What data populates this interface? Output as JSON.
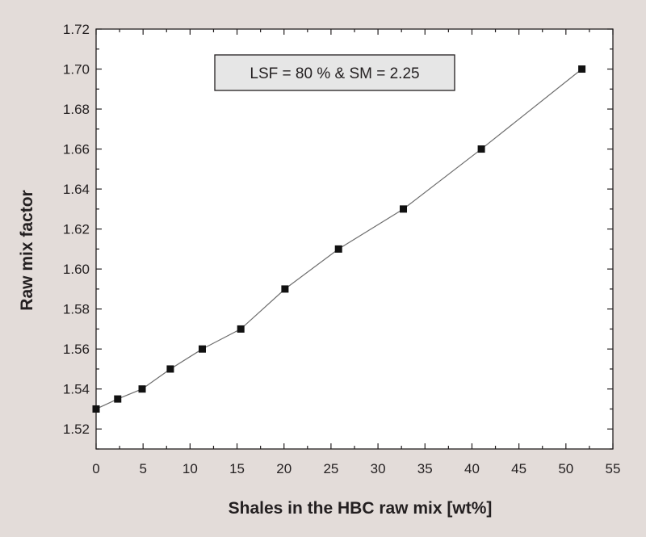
{
  "chart_data": {
    "type": "line",
    "xlabel": "Shales in the HBC raw mix [wt%]",
    "ylabel": "Raw mix factor",
    "xlim": [
      0,
      55
    ],
    "ylim": [
      1.51,
      1.72
    ],
    "x_ticks": [
      "0",
      "5",
      "10",
      "15",
      "20",
      "25",
      "30",
      "35",
      "40",
      "45",
      "50",
      "55"
    ],
    "y_ticks": [
      "1.52",
      "1.54",
      "1.56",
      "1.58",
      "1.60",
      "1.62",
      "1.64",
      "1.66",
      "1.68",
      "1.70",
      "1.72"
    ],
    "grid": false,
    "annotation": "LSF = 80 % & SM = 2.25",
    "series": [
      {
        "marker": "square",
        "x": [
          0,
          2.3,
          4.9,
          7.9,
          11.3,
          15.4,
          20.1,
          25.8,
          32.7,
          41.0,
          51.7
        ],
        "y": [
          1.53,
          1.535,
          1.54,
          1.55,
          1.56,
          1.57,
          1.59,
          1.61,
          1.63,
          1.66,
          1.7
        ]
      }
    ],
    "colors": {
      "background": "#e3dcd9",
      "plot_area": "#ffffff",
      "axis": "#231f20",
      "line": "#6d6d6d",
      "marker": "#111111",
      "annotation_box": "#e6e6e6"
    }
  }
}
